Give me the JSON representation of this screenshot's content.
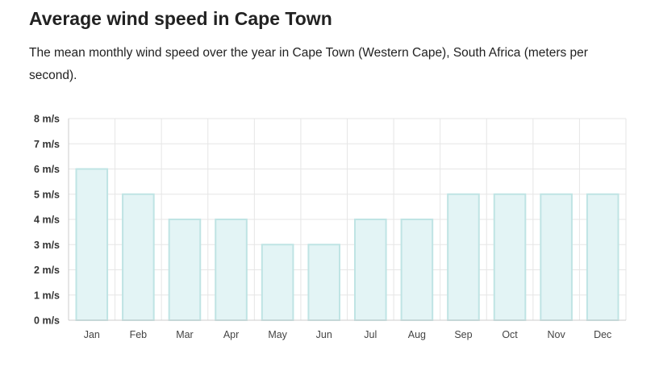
{
  "page": {
    "title": "Average wind speed in Cape Town",
    "subtitle": "The mean monthly wind speed over the year in Cape Town (Western Cape), South Africa (meters per second)."
  },
  "chart_data": {
    "type": "bar",
    "categories": [
      "Jan",
      "Feb",
      "Mar",
      "Apr",
      "May",
      "Jun",
      "Jul",
      "Aug",
      "Sep",
      "Oct",
      "Nov",
      "Dec"
    ],
    "values": [
      6,
      5,
      4,
      4,
      3,
      3,
      4,
      4,
      5,
      5,
      5,
      5
    ],
    "title": "",
    "xlabel": "",
    "ylabel": "",
    "ylim": [
      0,
      8
    ],
    "y_ticks": [
      "0 m/s",
      "1 m/s",
      "2 m/s",
      "3 m/s",
      "4 m/s",
      "5 m/s",
      "6 m/s",
      "7 m/s",
      "8 m/s"
    ],
    "grid": true,
    "legend": "none",
    "colors": {
      "bar_fill": "#e3f4f5",
      "bar_stroke": "#bfe4e4",
      "grid": "#e6e6e6",
      "axis": "#cccccc",
      "tick_label_y": "#333333",
      "tick_label_x": "#444444"
    }
  }
}
